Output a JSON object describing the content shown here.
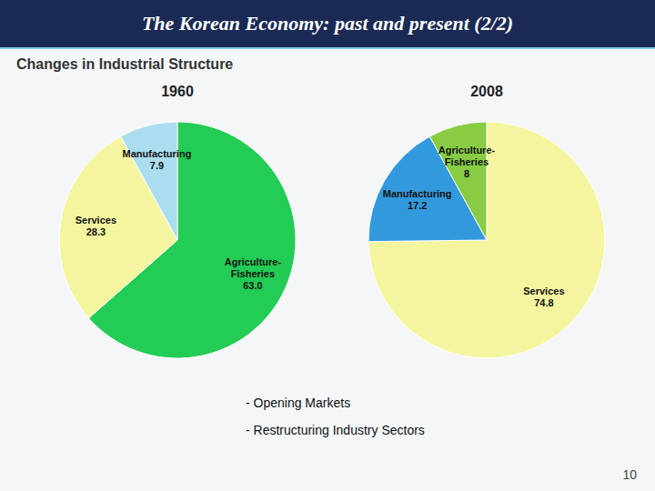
{
  "title": "The Korean Economy: past and present (2/2)",
  "subtitle": "Changes in Industrial Structure",
  "annotations": [
    "- Opening Markets",
    "- Restructuring Industry Sectors"
  ],
  "page_number": "10",
  "chart_data": [
    {
      "type": "pie",
      "title": "1960",
      "categories": [
        "Agriculture-\nFisheries",
        "Services",
        "Manufacturing"
      ],
      "values": [
        63.0,
        28.3,
        7.9
      ],
      "value_labels": [
        "63.0",
        "28.3",
        "7.9"
      ],
      "colors": [
        "#22cc55",
        "#f5f5a0",
        "#aaddee"
      ],
      "data_labels": true
    },
    {
      "type": "pie",
      "title": "2008",
      "categories": [
        "Services",
        "Manufacturing",
        "Agriculture-\nFisheries"
      ],
      "values": [
        74.8,
        17.2,
        8.0
      ],
      "value_labels": [
        "74.8",
        "17.2",
        "8"
      ],
      "colors": [
        "#f5f5a0",
        "#3399dd",
        "#88cc44"
      ],
      "data_labels": true
    }
  ]
}
